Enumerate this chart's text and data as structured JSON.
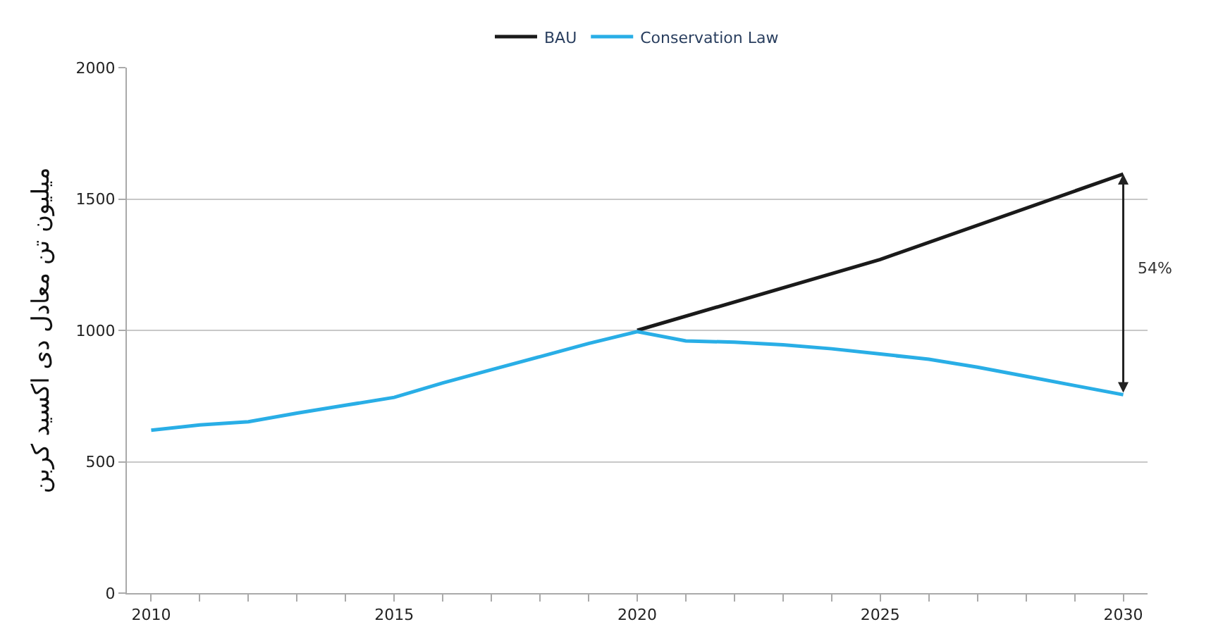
{
  "chart_data": {
    "type": "line",
    "ylabel": "میلیون تن معادل دی اکسید کربن",
    "series": [
      {
        "name": "BAU",
        "color": "#1a1a1a",
        "x": [
          2020,
          2025,
          2030
        ],
        "values": [
          1000,
          1270,
          1595
        ]
      },
      {
        "name": "Conservation Law",
        "color": "#29aee6",
        "x": [
          2010,
          2011,
          2012,
          2013,
          2014,
          2015,
          2016,
          2017,
          2018,
          2019,
          2020,
          2021,
          2022,
          2023,
          2024,
          2025,
          2026,
          2027,
          2028,
          2029,
          2030
        ],
        "values": [
          620,
          640,
          652,
          685,
          715,
          745,
          800,
          850,
          900,
          950,
          995,
          960,
          955,
          945,
          930,
          910,
          890,
          860,
          825,
          790,
          755
        ]
      }
    ],
    "xlim": [
      2009.5,
      2030.5
    ],
    "xticks": [
      2010,
      {
        "value": 2011,
        "label": null
      },
      {
        "value": 2012,
        "label": null
      },
      {
        "value": 2013,
        "label": null
      },
      {
        "value": 2014,
        "label": null
      },
      2015,
      {
        "value": 2016,
        "label": null
      },
      {
        "value": 2017,
        "label": null
      },
      {
        "value": 2018,
        "label": null
      },
      {
        "value": 2019,
        "label": null
      },
      2020,
      {
        "value": 2021,
        "label": null
      },
      {
        "value": 2022,
        "label": null
      },
      {
        "value": 2023,
        "label": null
      },
      {
        "value": 2024,
        "label": null
      },
      2025,
      {
        "value": 2026,
        "label": null
      },
      {
        "value": 2027,
        "label": null
      },
      {
        "value": 2028,
        "label": null
      },
      {
        "value": 2029,
        "label": null
      },
      2030
    ],
    "ylim": [
      0,
      2000
    ],
    "yticks": [
      0,
      500,
      1000,
      1500,
      2000
    ],
    "grid": "y",
    "legend": "top",
    "marker": "none",
    "line_style": "solid",
    "annotations": [
      "54%"
    ]
  }
}
